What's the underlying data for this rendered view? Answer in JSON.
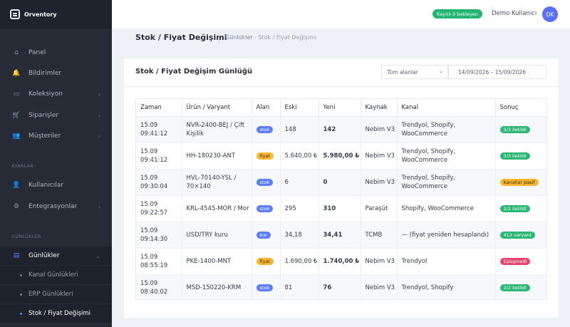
{
  "app": {
    "name": "Orventory"
  },
  "sidebar": {
    "items": [
      {
        "label": "Panel",
        "icon": "dashboard-icon",
        "glyph": "⌂"
      },
      {
        "label": "Bildirimler",
        "icon": "bell-icon",
        "glyph": "🔔"
      },
      {
        "label": "Koleksiyon",
        "icon": "box-icon",
        "glyph": "▭"
      },
      {
        "label": "Siparişler",
        "icon": "cart-icon",
        "glyph": "🛒"
      },
      {
        "label": "Müşteriler",
        "icon": "users-icon",
        "glyph": "👥"
      }
    ],
    "settings_header": "AYARLAR",
    "settings_items": [
      {
        "label": "Kullanıcılar",
        "icon": "user-icon",
        "glyph": "👤"
      },
      {
        "label": "Entegrasyonlar",
        "icon": "plug-icon",
        "glyph": "⚙"
      }
    ],
    "logs_header": "GÜNLÜKLER",
    "logs_item": {
      "label": "Günlükler",
      "icon": "document-icon",
      "glyph": "▤"
    },
    "logs_subitems": [
      {
        "label": "Kanal Günlükleri"
      },
      {
        "label": "ERP Günlükleri"
      },
      {
        "label": "Stok / Fiyat Değişimi"
      }
    ]
  },
  "topbar": {
    "sync_badge": "Kayıtlı 0 bekleyen",
    "user_name": "Demo Kullanıcı",
    "avatar_initials": "DK"
  },
  "page": {
    "title": "Stok / Fiyat Değişimi",
    "breadcrumb_parent": "Günlükler",
    "breadcrumb_sep": " · ",
    "breadcrumb_current": "Stok / Fiyat Değişimi"
  },
  "card": {
    "title": "Stok / Fiyat Değişim Günlüğü",
    "filter_select": "Tüm alanlar",
    "date_range": "14/09/2026 – 15/09/2026"
  },
  "table": {
    "headers": [
      "Zaman",
      "Ürün / Varyant",
      "Alan",
      "Eski",
      "Yeni",
      "Kaynak",
      "Kanal",
      "Sonuç"
    ],
    "rows": [
      {
        "time": "15.09 09:41:12",
        "product": "NVR-2400-BEJ / Çift Kişilik",
        "field": "stok",
        "field_color": "blue",
        "old": "148",
        "new": "142",
        "source": "Nebim V3",
        "channel": "Trendyol, Shopify, WooCommerce",
        "result": "3/3 iletildi",
        "result_color": "green"
      },
      {
        "time": "15.09 09:41:12",
        "product": "HH-180230-ANT",
        "field": "fiyat",
        "field_color": "amber",
        "old": "5.640,00 ₺",
        "new": "5.980,00 ₺",
        "source": "Nebim V3",
        "channel": "Trendyol, Shopify, WooCommerce",
        "result": "3/3 iletildi",
        "result_color": "green"
      },
      {
        "time": "15.09 09:30:04",
        "product": "HVL-70140-YSL / 70×140",
        "field": "stok",
        "field_color": "blue",
        "old": "6",
        "new": "0",
        "source": "Nebim V3",
        "channel": "Trendyol, Shopify, WooCommerce",
        "result": "Kanallar pasif",
        "result_color": "amber"
      },
      {
        "time": "15.09 09:22:57",
        "product": "KRL-4545-MOR / Mor",
        "field": "stok",
        "field_color": "blue",
        "old": "295",
        "new": "310",
        "source": "Paraşüt",
        "channel": "Shopify, WooCommerce",
        "result": "2/2 iletildi",
        "result_color": "green"
      },
      {
        "time": "15.09 09:14:30",
        "product": "USD/TRY kuru",
        "field": "kur",
        "field_color": "blue",
        "old": "34,18",
        "new": "34,41",
        "source": "TCMB",
        "channel": "— (fiyat yeniden hesaplandı)",
        "result": "412 varyant",
        "result_color": "green"
      },
      {
        "time": "15.09 08:55:19",
        "product": "PKE-1400-MNT",
        "field": "fiyat",
        "field_color": "amber",
        "old": "1.690,00 ₺",
        "new": "1.740,00 ₺",
        "source": "Nebim V3",
        "channel": "Trendyol",
        "result": "Eşleşmedi",
        "result_color": "pink"
      },
      {
        "time": "15.09 08:40:02",
        "product": "MSD-150220-KRM",
        "field": "stok",
        "field_color": "blue",
        "old": "81",
        "new": "76",
        "source": "Nebim V3",
        "channel": "Trendyol, Shopify",
        "result": "2/2 iletildi",
        "result_color": "green"
      }
    ]
  }
}
